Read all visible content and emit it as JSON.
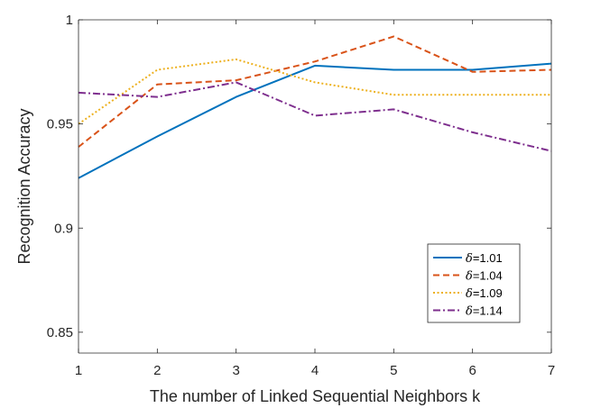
{
  "chart_data": {
    "type": "line",
    "title": "",
    "xlabel": "The number of Linked Sequential Neighbors k",
    "ylabel": "Recognition Accuracy",
    "x": [
      1,
      2,
      3,
      4,
      5,
      6,
      7
    ],
    "xlim": [
      1,
      7
    ],
    "ylim": [
      0.84,
      1.0
    ],
    "xticks": [
      "1",
      "2",
      "3",
      "4",
      "5",
      "6",
      "7"
    ],
    "yticks": [
      {
        "value": 0.85,
        "label": "0.85"
      },
      {
        "value": 0.9,
        "label": "0.9"
      },
      {
        "value": 0.95,
        "label": "0.95"
      },
      {
        "value": 1.0,
        "label": "1"
      }
    ],
    "grid": false,
    "legend_position": "bottom-right",
    "series": [
      {
        "name": "δ=1.01",
        "legend_symbol": "δ",
        "legend_text": "=1.01",
        "color": "#0072BD",
        "dash": "solid",
        "values": [
          0.924,
          0.944,
          0.963,
          0.978,
          0.976,
          0.976,
          0.979
        ]
      },
      {
        "name": "δ=1.04",
        "legend_symbol": "δ",
        "legend_text": "=1.04",
        "color": "#D95319",
        "dash": "dashed",
        "values": [
          0.939,
          0.969,
          0.971,
          0.98,
          0.992,
          0.975,
          0.976
        ]
      },
      {
        "name": "δ=1.09",
        "legend_symbol": "δ",
        "legend_text": "=1.09",
        "color": "#EDB120",
        "dash": "dotted",
        "values": [
          0.95,
          0.976,
          0.981,
          0.97,
          0.964,
          0.964,
          0.964
        ]
      },
      {
        "name": "δ=1.14",
        "legend_symbol": "δ",
        "legend_text": "=1.14",
        "color": "#7E2F8E",
        "dash": "dashdot",
        "values": [
          0.965,
          0.963,
          0.97,
          0.954,
          0.957,
          0.946,
          0.937
        ]
      }
    ]
  }
}
